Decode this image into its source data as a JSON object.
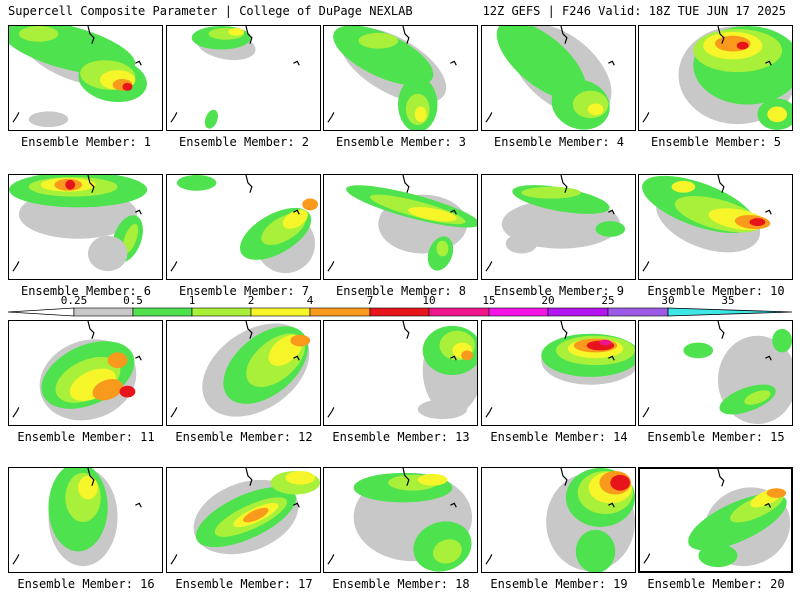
{
  "header": {
    "title": "Supercell Composite Parameter | College of DuPage NEXLAB",
    "run_info": "12Z GEFS | F246 Valid: 18Z TUE JUN 17 2025"
  },
  "members": [
    {
      "label": "Ensemble Member: 1"
    },
    {
      "label": "Ensemble Member: 2"
    },
    {
      "label": "Ensemble Member: 3"
    },
    {
      "label": "Ensemble Member: 4"
    },
    {
      "label": "Ensemble Member: 5"
    },
    {
      "label": "Ensemble Member: 6"
    },
    {
      "label": "Ensemble Member: 7"
    },
    {
      "label": "Ensemble Member: 8"
    },
    {
      "label": "Ensemble Member: 9"
    },
    {
      "label": "Ensemble Member: 10"
    },
    {
      "label": "Ensemble Member: 11"
    },
    {
      "label": "Ensemble Member: 12"
    },
    {
      "label": "Ensemble Member: 13"
    },
    {
      "label": "Ensemble Member: 14"
    },
    {
      "label": "Ensemble Member: 15"
    },
    {
      "label": "Ensemble Member: 16"
    },
    {
      "label": "Ensemble Member: 17"
    },
    {
      "label": "Ensemble Member: 18"
    },
    {
      "label": "Ensemble Member: 19"
    },
    {
      "label": "Ensemble Member: 20",
      "selected": true
    }
  ],
  "colorbar": {
    "labels": [
      "0.25",
      "0.5",
      "1",
      "2",
      "4",
      "7",
      "10",
      "15",
      "20",
      "25",
      "30",
      "35"
    ],
    "colors": [
      "#ffffff",
      "#c8c8c8",
      "#4ee24e",
      "#a8f03a",
      "#f5f52a",
      "#f99a1c",
      "#e8141c",
      "#f0148c",
      "#f514e6",
      "#b414f0",
      "#9c5ae6",
      "#3ee6e6"
    ]
  },
  "map_colors": {
    "gray": "#c8c8c8",
    "green": "#4ee24e",
    "lime": "#a8f03a",
    "yellow": "#f5f52a",
    "orange": "#f99a1c",
    "red": "#e8141c",
    "magenta": "#f0148c"
  }
}
